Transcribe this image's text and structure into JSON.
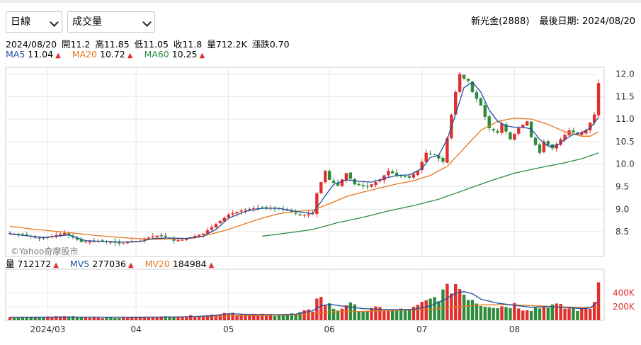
{
  "controls": {
    "period_select": "日線",
    "indicator_select": "成交量"
  },
  "header": {
    "stock": "新光金(2888)",
    "last_date_label": "最後日期: 2024/08/20"
  },
  "ohlc": {
    "date": "2024/08/20",
    "open": "開11.2",
    "high": "高11.85",
    "low": "低11.05",
    "close": "收11.8",
    "volume": "量712.2K",
    "change": "漲跌0.70"
  },
  "ma_legend": [
    {
      "label": "MA5",
      "value": "11.04",
      "color": "#1f4e9e"
    },
    {
      "label": "MA20",
      "value": "10.72",
      "color": "#e8761c"
    },
    {
      "label": "MA60",
      "value": "10.25",
      "color": "#2e8b45"
    }
  ],
  "vol_legend": [
    {
      "label": "量",
      "value": "712172",
      "color": "#000000"
    },
    {
      "label": "MV5",
      "value": "277036",
      "color": "#1f4e9e"
    },
    {
      "label": "MV20",
      "value": "184984",
      "color": "#e8761c"
    }
  ],
  "watermark": "©Yahoo奇摩股市",
  "chart_data": [
    {
      "type": "candlestick",
      "title": "",
      "y_ticks": [
        8.5,
        9.0,
        9.5,
        10.0,
        10.5,
        11.0,
        11.5,
        12.0
      ],
      "ylim": [
        7.95,
        12.15
      ],
      "x_ticks": [
        "2024/03",
        "04",
        "05",
        "06",
        "07",
        "08"
      ],
      "colors": {
        "up": "#e0302d",
        "down": "#2e8b3b",
        "flat": "#555555"
      },
      "series_keypoints": {
        "close": [
          [
            0,
            8.47
          ],
          [
            8,
            8.35
          ],
          [
            13,
            8.47
          ],
          [
            17,
            8.27
          ],
          [
            22,
            8.3
          ],
          [
            26,
            8.24
          ],
          [
            31,
            8.3
          ],
          [
            34,
            8.4
          ],
          [
            36,
            8.42
          ],
          [
            39,
            8.3
          ],
          [
            41,
            8.32
          ],
          [
            46,
            8.46
          ],
          [
            49,
            8.67
          ],
          [
            52,
            8.88
          ],
          [
            55,
            8.97
          ],
          [
            58,
            9.02
          ],
          [
            62,
            9.03
          ],
          [
            66,
            8.98
          ],
          [
            69,
            8.86
          ],
          [
            72,
            8.9
          ],
          [
            73,
            9.35
          ],
          [
            75,
            9.85
          ],
          [
            76,
            9.65
          ],
          [
            78,
            9.52
          ],
          [
            80,
            9.8
          ],
          [
            82,
            9.55
          ],
          [
            85,
            9.5
          ],
          [
            88,
            9.65
          ],
          [
            90,
            9.85
          ],
          [
            92,
            9.75
          ],
          [
            95,
            9.7
          ],
          [
            97,
            9.85
          ],
          [
            99,
            10.25
          ],
          [
            101,
            10.2
          ],
          [
            103,
            10.05
          ],
          [
            105,
            11.1
          ],
          [
            106,
            11.6
          ],
          [
            107,
            12.0
          ],
          [
            108,
            11.9
          ],
          [
            109,
            11.85
          ],
          [
            110,
            11.6
          ],
          [
            112,
            11.3
          ],
          [
            114,
            10.8
          ],
          [
            116,
            10.7
          ],
          [
            117,
            10.9
          ],
          [
            119,
            10.55
          ],
          [
            121,
            10.8
          ],
          [
            123,
            10.95
          ],
          [
            124,
            10.6
          ],
          [
            126,
            10.25
          ],
          [
            127,
            10.5
          ],
          [
            129,
            10.35
          ],
          [
            131,
            10.55
          ],
          [
            133,
            10.75
          ],
          [
            135,
            10.65
          ],
          [
            137,
            10.75
          ],
          [
            139,
            11.1
          ],
          [
            140,
            11.8
          ]
        ]
      },
      "ma5_keypoints": [
        [
          0,
          8.45
        ],
        [
          8,
          8.37
        ],
        [
          14,
          8.43
        ],
        [
          18,
          8.3
        ],
        [
          26,
          8.27
        ],
        [
          31,
          8.28
        ],
        [
          34,
          8.35
        ],
        [
          38,
          8.36
        ],
        [
          42,
          8.35
        ],
        [
          46,
          8.4
        ],
        [
          49,
          8.55
        ],
        [
          52,
          8.8
        ],
        [
          56,
          8.95
        ],
        [
          60,
          9.02
        ],
        [
          64,
          9.02
        ],
        [
          68,
          8.95
        ],
        [
          72,
          8.9
        ],
        [
          75,
          9.3
        ],
        [
          77,
          9.55
        ],
        [
          80,
          9.65
        ],
        [
          83,
          9.62
        ],
        [
          86,
          9.6
        ],
        [
          89,
          9.68
        ],
        [
          92,
          9.75
        ],
        [
          95,
          9.76
        ],
        [
          98,
          9.9
        ],
        [
          100,
          10.15
        ],
        [
          102,
          10.2
        ],
        [
          104,
          10.55
        ],
        [
          106,
          11.1
        ],
        [
          108,
          11.7
        ],
        [
          110,
          11.82
        ],
        [
          112,
          11.6
        ],
        [
          114,
          11.2
        ],
        [
          116,
          10.95
        ],
        [
          118,
          10.85
        ],
        [
          120,
          10.82
        ],
        [
          122,
          10.82
        ],
        [
          124,
          10.78
        ],
        [
          126,
          10.55
        ],
        [
          128,
          10.4
        ],
        [
          130,
          10.4
        ],
        [
          132,
          10.55
        ],
        [
          134,
          10.66
        ],
        [
          136,
          10.7
        ],
        [
          138,
          10.8
        ],
        [
          140,
          11.04
        ]
      ],
      "ma20_keypoints": [
        [
          0,
          8.62
        ],
        [
          6,
          8.55
        ],
        [
          12,
          8.5
        ],
        [
          20,
          8.42
        ],
        [
          28,
          8.36
        ],
        [
          34,
          8.33
        ],
        [
          40,
          8.34
        ],
        [
          44,
          8.36
        ],
        [
          48,
          8.45
        ],
        [
          52,
          8.55
        ],
        [
          56,
          8.68
        ],
        [
          60,
          8.8
        ],
        [
          64,
          8.9
        ],
        [
          68,
          8.95
        ],
        [
          72,
          8.98
        ],
        [
          76,
          9.12
        ],
        [
          80,
          9.28
        ],
        [
          84,
          9.38
        ],
        [
          88,
          9.47
        ],
        [
          92,
          9.56
        ],
        [
          96,
          9.63
        ],
        [
          100,
          9.75
        ],
        [
          104,
          9.95
        ],
        [
          108,
          10.35
        ],
        [
          112,
          10.75
        ],
        [
          116,
          10.95
        ],
        [
          120,
          11.02
        ],
        [
          124,
          11.0
        ],
        [
          128,
          10.88
        ],
        [
          132,
          10.72
        ],
        [
          136,
          10.62
        ],
        [
          138,
          10.62
        ],
        [
          140,
          10.72
        ]
      ],
      "ma60_keypoints": [
        [
          60,
          8.4
        ],
        [
          66,
          8.47
        ],
        [
          72,
          8.55
        ],
        [
          78,
          8.7
        ],
        [
          84,
          8.82
        ],
        [
          90,
          8.96
        ],
        [
          96,
          9.08
        ],
        [
          102,
          9.22
        ],
        [
          108,
          9.42
        ],
        [
          114,
          9.62
        ],
        [
          120,
          9.8
        ],
        [
          126,
          9.92
        ],
        [
          132,
          10.03
        ],
        [
          136,
          10.12
        ],
        [
          140,
          10.25
        ]
      ]
    },
    {
      "type": "bar",
      "title": "",
      "y_ticks": [
        "200K",
        "400K"
      ],
      "ylim": [
        0,
        750
      ],
      "unit": "K shares",
      "volume_keypoints": [
        [
          0,
          35
        ],
        [
          8,
          45
        ],
        [
          14,
          60
        ],
        [
          20,
          40
        ],
        [
          26,
          35
        ],
        [
          34,
          45
        ],
        [
          40,
          55
        ],
        [
          46,
          60
        ],
        [
          50,
          95
        ],
        [
          52,
          120
        ],
        [
          56,
          75
        ],
        [
          60,
          80
        ],
        [
          64,
          85
        ],
        [
          68,
          90
        ],
        [
          72,
          145
        ],
        [
          73,
          380
        ],
        [
          75,
          250
        ],
        [
          78,
          150
        ],
        [
          80,
          240
        ],
        [
          84,
          140
        ],
        [
          88,
          170
        ],
        [
          92,
          140
        ],
        [
          96,
          170
        ],
        [
          100,
          290
        ],
        [
          104,
          430
        ],
        [
          106,
          540
        ],
        [
          108,
          400
        ],
        [
          110,
          320
        ],
        [
          112,
          240
        ],
        [
          114,
          230
        ],
        [
          116,
          200
        ],
        [
          118,
          210
        ],
        [
          120,
          230
        ],
        [
          122,
          180
        ],
        [
          124,
          170
        ],
        [
          126,
          190
        ],
        [
          128,
          230
        ],
        [
          130,
          210
        ],
        [
          132,
          180
        ],
        [
          134,
          170
        ],
        [
          136,
          160
        ],
        [
          138,
          190
        ],
        [
          139,
          270
        ],
        [
          140,
          712
        ]
      ],
      "mv5_keypoints": [
        [
          0,
          40
        ],
        [
          10,
          45
        ],
        [
          20,
          45
        ],
        [
          30,
          40
        ],
        [
          40,
          48
        ],
        [
          48,
          65
        ],
        [
          52,
          95
        ],
        [
          58,
          85
        ],
        [
          64,
          82
        ],
        [
          68,
          90
        ],
        [
          72,
          140
        ],
        [
          74,
          210
        ],
        [
          76,
          235
        ],
        [
          80,
          200
        ],
        [
          84,
          170
        ],
        [
          88,
          160
        ],
        [
          92,
          155
        ],
        [
          96,
          160
        ],
        [
          100,
          210
        ],
        [
          104,
          320
        ],
        [
          106,
          400
        ],
        [
          108,
          420
        ],
        [
          110,
          390
        ],
        [
          112,
          310
        ],
        [
          116,
          250
        ],
        [
          120,
          220
        ],
        [
          124,
          190
        ],
        [
          128,
          200
        ],
        [
          132,
          190
        ],
        [
          136,
          170
        ],
        [
          138,
          180
        ],
        [
          140,
          277
        ]
      ],
      "mv20_keypoints": [
        [
          0,
          45
        ],
        [
          20,
          45
        ],
        [
          40,
          48
        ],
        [
          50,
          60
        ],
        [
          60,
          72
        ],
        [
          70,
          80
        ],
        [
          76,
          120
        ],
        [
          84,
          130
        ],
        [
          92,
          145
        ],
        [
          100,
          160
        ],
        [
          106,
          195
        ],
        [
          112,
          225
        ],
        [
          118,
          230
        ],
        [
          124,
          215
        ],
        [
          130,
          200
        ],
        [
          136,
          185
        ],
        [
          140,
          185
        ]
      ]
    }
  ]
}
